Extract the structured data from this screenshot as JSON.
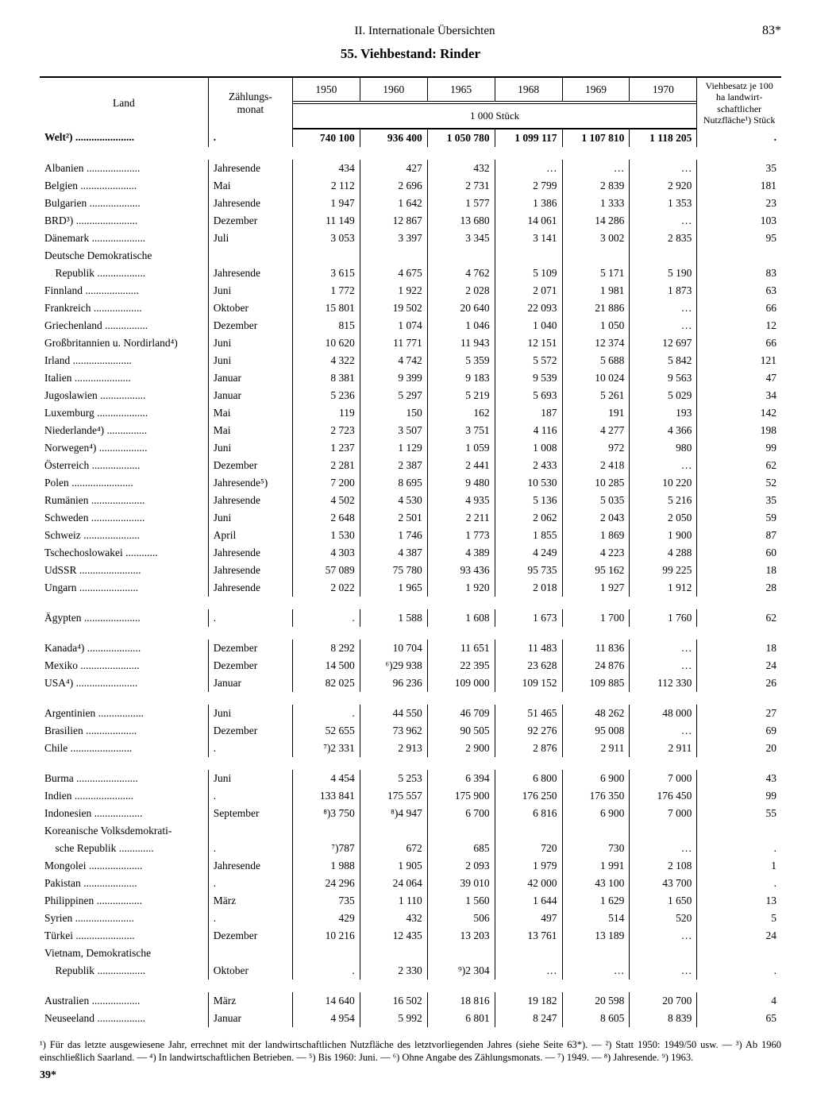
{
  "page": {
    "section_header": "II. Internationale Übersichten",
    "page_number": "83*",
    "table_title": "55. Viehbestand: Rinder",
    "signature": "39*"
  },
  "header": {
    "country": "Land",
    "month": "Zählungs-\nmonat",
    "unit": "1 000 Stück",
    "density": "Viehbesatz je 100 ha landwirt-schaftlicher Nutzfläche¹) Stück",
    "years": [
      "1950",
      "1960",
      "1965",
      "1968",
      "1969",
      "1970"
    ]
  },
  "rows": [
    {
      "type": "data",
      "class": "world",
      "country": "Welt²)",
      "month": ".",
      "v": [
        "740 100",
        "936 400",
        "1 050 780",
        "1 099 117",
        "1 107 810",
        "1 118 205"
      ],
      "d": "."
    },
    {
      "type": "gap"
    },
    {
      "type": "data",
      "country": "Albanien",
      "month": "Jahresende",
      "v": [
        "434",
        "427",
        "432",
        "…",
        "…",
        "…"
      ],
      "d": "35"
    },
    {
      "type": "data",
      "country": "Belgien",
      "month": "Mai",
      "v": [
        "2 112",
        "2 696",
        "2 731",
        "2 799",
        "2 839",
        "2 920"
      ],
      "d": "181"
    },
    {
      "type": "data",
      "country": "Bulgarien",
      "month": "Jahresende",
      "v": [
        "1 947",
        "1 642",
        "1 577",
        "1 386",
        "1 333",
        "1 353"
      ],
      "d": "23"
    },
    {
      "type": "data",
      "country": "BRD³)",
      "month": "Dezember",
      "v": [
        "11 149",
        "12 867",
        "13 680",
        "14 061",
        "14 286",
        "…"
      ],
      "d": "103"
    },
    {
      "type": "data",
      "country": "Dänemark",
      "month": "Juli",
      "v": [
        "3 053",
        "3 397",
        "3 345",
        "3 141",
        "3 002",
        "2 835"
      ],
      "d": "95"
    },
    {
      "type": "data",
      "country": "Deutsche Demokratische",
      "month": "",
      "v": [
        "",
        "",
        "",
        "",
        "",
        ""
      ],
      "d": ""
    },
    {
      "type": "data",
      "country": "  Republik",
      "month": "Jahresende",
      "v": [
        "3 615",
        "4 675",
        "4 762",
        "5 109",
        "5 171",
        "5 190"
      ],
      "d": "83"
    },
    {
      "type": "data",
      "country": "Finnland",
      "month": "Juni",
      "v": [
        "1 772",
        "1 922",
        "2 028",
        "2 071",
        "1 981",
        "1 873"
      ],
      "d": "63"
    },
    {
      "type": "data",
      "country": "Frankreich",
      "month": "Oktober",
      "v": [
        "15 801",
        "19 502",
        "20 640",
        "22 093",
        "21 886",
        "…"
      ],
      "d": "66"
    },
    {
      "type": "data",
      "country": "Griechenland",
      "month": "Dezember",
      "v": [
        "815",
        "1 074",
        "1 046",
        "1 040",
        "1 050",
        "…"
      ],
      "d": "12"
    },
    {
      "type": "data",
      "country": "Großbritannien u. Nordirland⁴)",
      "month": "Juni",
      "v": [
        "10 620",
        "11 771",
        "11 943",
        "12 151",
        "12 374",
        "12 697"
      ],
      "d": "66"
    },
    {
      "type": "data",
      "country": "Irland",
      "month": "Juni",
      "v": [
        "4 322",
        "4 742",
        "5 359",
        "5 572",
        "5 688",
        "5 842"
      ],
      "d": "121"
    },
    {
      "type": "data",
      "country": "Italien",
      "month": "Januar",
      "v": [
        "8 381",
        "9 399",
        "9 183",
        "9 539",
        "10 024",
        "9 563"
      ],
      "d": "47"
    },
    {
      "type": "data",
      "country": "Jugoslawien",
      "month": "Januar",
      "v": [
        "5 236",
        "5 297",
        "5 219",
        "5 693",
        "5 261",
        "5 029"
      ],
      "d": "34"
    },
    {
      "type": "data",
      "country": "Luxemburg",
      "month": "Mai",
      "v": [
        "119",
        "150",
        "162",
        "187",
        "191",
        "193"
      ],
      "d": "142"
    },
    {
      "type": "data",
      "country": "Niederlande⁴)",
      "month": "Mai",
      "v": [
        "2 723",
        "3 507",
        "3 751",
        "4 116",
        "4 277",
        "4 366"
      ],
      "d": "198"
    },
    {
      "type": "data",
      "country": "Norwegen⁴)",
      "month": "Juni",
      "v": [
        "1 237",
        "1 129",
        "1 059",
        "1 008",
        "972",
        "980"
      ],
      "d": "99"
    },
    {
      "type": "data",
      "country": "Österreich",
      "month": "Dezember",
      "v": [
        "2 281",
        "2 387",
        "2 441",
        "2 433",
        "2 418",
        "…"
      ],
      "d": "62"
    },
    {
      "type": "data",
      "country": "Polen",
      "month": "Jahresende⁵)",
      "v": [
        "7 200",
        "8 695",
        "9 480",
        "10 530",
        "10 285",
        "10 220"
      ],
      "d": "52"
    },
    {
      "type": "data",
      "country": "Rumänien",
      "month": "Jahresende",
      "v": [
        "4 502",
        "4 530",
        "4 935",
        "5 136",
        "5 035",
        "5 216"
      ],
      "d": "35"
    },
    {
      "type": "data",
      "country": "Schweden",
      "month": "Juni",
      "v": [
        "2 648",
        "2 501",
        "2 211",
        "2 062",
        "2 043",
        "2 050"
      ],
      "d": "59"
    },
    {
      "type": "data",
      "country": "Schweiz",
      "month": "April",
      "v": [
        "1 530",
        "1 746",
        "1 773",
        "1 855",
        "1 869",
        "1 900"
      ],
      "d": "87"
    },
    {
      "type": "data",
      "country": "Tschechoslowakei",
      "month": "Jahresende",
      "v": [
        "4 303",
        "4 387",
        "4 389",
        "4 249",
        "4 223",
        "4 288"
      ],
      "d": "60"
    },
    {
      "type": "data",
      "country": "UdSSR",
      "month": "Jahresende",
      "v": [
        "57 089",
        "75 780",
        "93 436",
        "95 735",
        "95 162",
        "99 225"
      ],
      "d": "18"
    },
    {
      "type": "data",
      "country": "Ungarn",
      "month": "Jahresende",
      "v": [
        "2 022",
        "1 965",
        "1 920",
        "2 018",
        "1 927",
        "1 912"
      ],
      "d": "28"
    },
    {
      "type": "gap"
    },
    {
      "type": "data",
      "country": "Ägypten",
      "month": ".",
      "v": [
        ".",
        "1 588",
        "1 608",
        "1 673",
        "1 700",
        "1 760"
      ],
      "d": "62"
    },
    {
      "type": "gap"
    },
    {
      "type": "data",
      "country": "Kanada⁴)",
      "month": "Dezember",
      "v": [
        "8 292",
        "10 704",
        "11 651",
        "11 483",
        "11 836",
        "…"
      ],
      "d": "18"
    },
    {
      "type": "data",
      "country": "Mexiko",
      "month": "Dezember",
      "v": [
        "14 500",
        "⁶)29 938",
        "22 395",
        "23 628",
        "24 876",
        "…"
      ],
      "d": "24"
    },
    {
      "type": "data",
      "country": "USA⁴)",
      "month": "Januar",
      "v": [
        "82 025",
        "96 236",
        "109 000",
        "109 152",
        "109 885",
        "112 330"
      ],
      "d": "26"
    },
    {
      "type": "gap"
    },
    {
      "type": "data",
      "country": "Argentinien",
      "month": "Juni",
      "v": [
        ".",
        "44 550",
        "46 709",
        "51 465",
        "48 262",
        "48 000"
      ],
      "d": "27"
    },
    {
      "type": "data",
      "country": "Brasilien",
      "month": "Dezember",
      "v": [
        "52 655",
        "73 962",
        "90 505",
        "92 276",
        "95 008",
        "…"
      ],
      "d": "69"
    },
    {
      "type": "data",
      "country": "Chile",
      "month": ".",
      "v": [
        "⁷)2 331",
        "2 913",
        "2 900",
        "2 876",
        "2 911",
        "2 911"
      ],
      "d": "20"
    },
    {
      "type": "gap"
    },
    {
      "type": "data",
      "country": "Burma",
      "month": "Juni",
      "v": [
        "4 454",
        "5 253",
        "6 394",
        "6 800",
        "6 900",
        "7 000"
      ],
      "d": "43"
    },
    {
      "type": "data",
      "country": "Indien",
      "month": ".",
      "v": [
        "133 841",
        "175 557",
        "175 900",
        "176 250",
        "176 350",
        "176 450"
      ],
      "d": "99"
    },
    {
      "type": "data",
      "country": "Indonesien",
      "month": "September",
      "v": [
        "⁸)3 750",
        "⁸)4 947",
        "6 700",
        "6 816",
        "6 900",
        "7 000"
      ],
      "d": "55"
    },
    {
      "type": "data",
      "country": "Koreanische Volksdemokrati-",
      "month": "",
      "v": [
        "",
        "",
        "",
        "",
        "",
        ""
      ],
      "d": ""
    },
    {
      "type": "data",
      "country": "  sche Republik",
      "month": ".",
      "v": [
        "⁷)787",
        "672",
        "685",
        "720",
        "730",
        "…"
      ],
      "d": "."
    },
    {
      "type": "data",
      "country": "Mongolei",
      "month": "Jahresende",
      "v": [
        "1 988",
        "1 905",
        "2 093",
        "1 979",
        "1 991",
        "2 108"
      ],
      "d": "1"
    },
    {
      "type": "data",
      "country": "Pakistan",
      "month": ".",
      "v": [
        "24 296",
        "24 064",
        "39 010",
        "42 000",
        "43 100",
        "43 700"
      ],
      "d": "."
    },
    {
      "type": "data",
      "country": "Philippinen",
      "month": "März",
      "v": [
        "735",
        "1 110",
        "1 560",
        "1 644",
        "1 629",
        "1 650"
      ],
      "d": "13"
    },
    {
      "type": "data",
      "country": "Syrien",
      "month": ".",
      "v": [
        "429",
        "432",
        "506",
        "497",
        "514",
        "520"
      ],
      "d": "5"
    },
    {
      "type": "data",
      "country": "Türkei",
      "month": "Dezember",
      "v": [
        "10 216",
        "12 435",
        "13 203",
        "13 761",
        "13 189",
        "…"
      ],
      "d": "24"
    },
    {
      "type": "data",
      "country": "Vietnam, Demokratische",
      "month": "",
      "v": [
        "",
        "",
        "",
        "",
        "",
        ""
      ],
      "d": ""
    },
    {
      "type": "data",
      "country": "  Republik",
      "month": "Oktober",
      "v": [
        ".",
        "2 330",
        "⁹)2 304",
        "…",
        "…",
        "…"
      ],
      "d": "."
    },
    {
      "type": "gap"
    },
    {
      "type": "data",
      "country": "Australien",
      "month": "März",
      "v": [
        "14 640",
        "16 502",
        "18 816",
        "19 182",
        "20 598",
        "20 700"
      ],
      "d": "4"
    },
    {
      "type": "data",
      "country": "Neuseeland",
      "month": "Januar",
      "v": [
        "4 954",
        "5 992",
        "6 801",
        "8 247",
        "8 605",
        "8 839"
      ],
      "d": "65"
    }
  ],
  "footnotes": "¹) Für das letzte ausgewiesene Jahr, errechnet mit der landwirtschaftlichen Nutzfläche des letztvorliegenden Jahres (siehe Seite 63*). — ²) Statt 1950: 1949/50 usw. — ³) Ab 1960 einschließlich Saarland. — ⁴) In landwirtschaftlichen Betrieben. — ⁵) Bis 1960: Juni. — ⁶) Ohne Angabe des Zählungsmonats. — ⁷) 1949. — ⁸) Jahresende. ⁹) 1963."
}
